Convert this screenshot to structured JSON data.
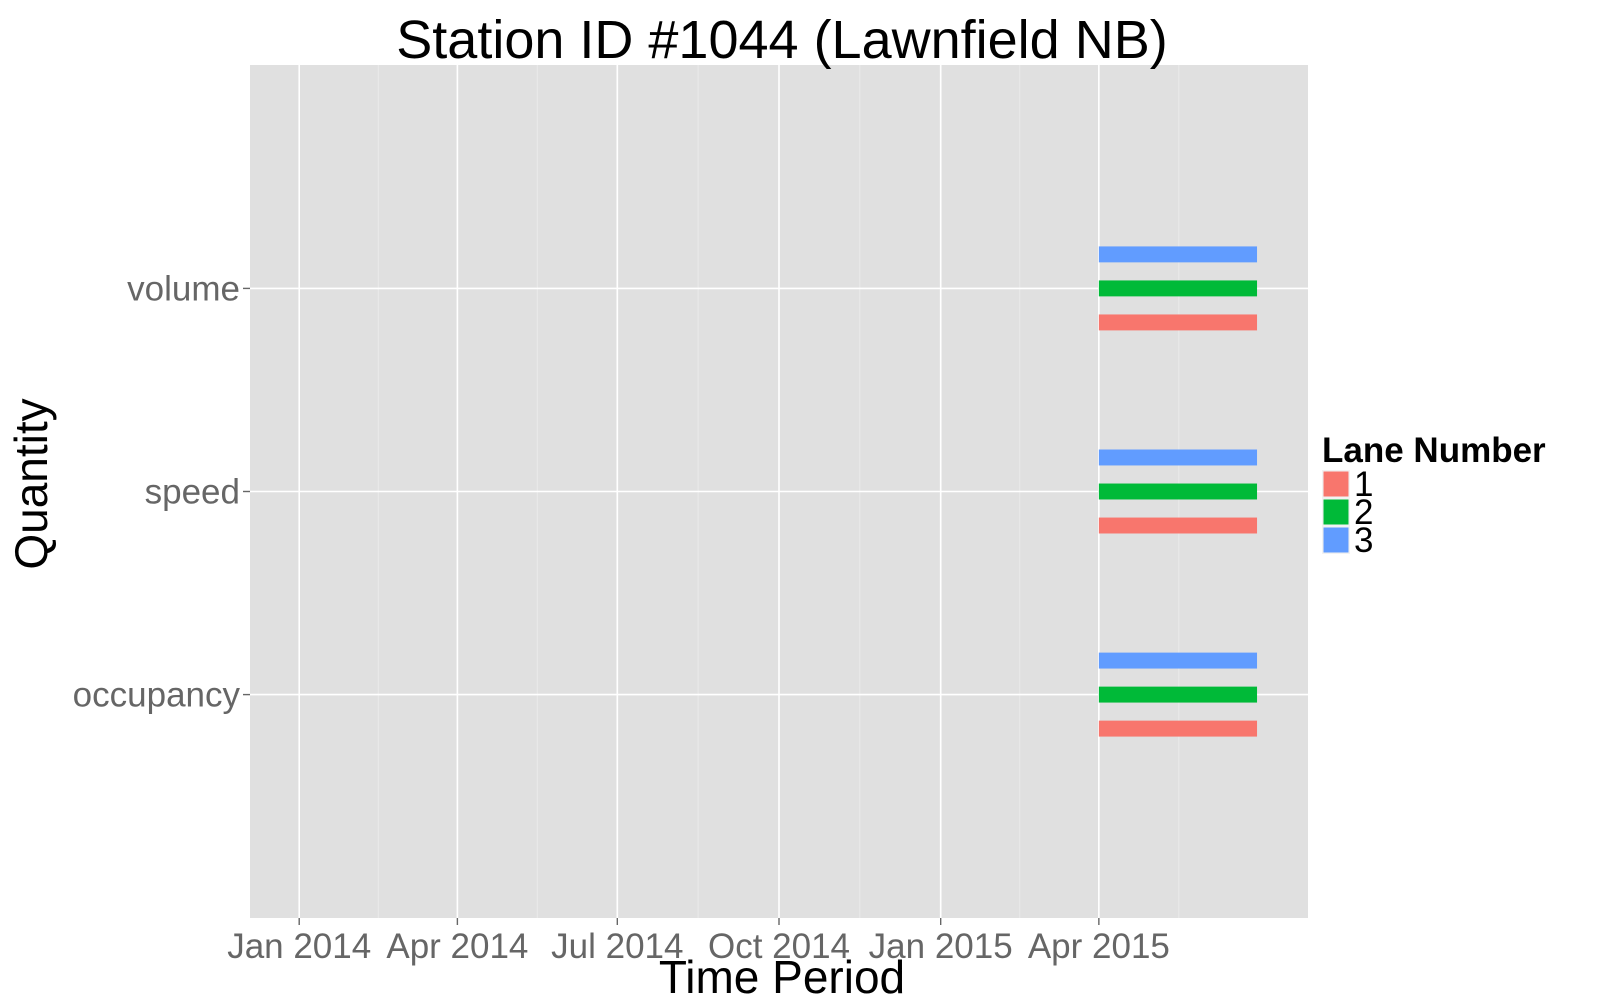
{
  "chart_data": {
    "type": "bar",
    "orientation": "horizontal",
    "title": "Station ID #1044 (Lawnfield NB)",
    "xlabel": "Time Period",
    "ylabel": "Quantity",
    "x_axis": {
      "type": "date",
      "ticks": [
        "2014-01-01",
        "2014-04-01",
        "2014-07-01",
        "2014-10-01",
        "2015-01-01",
        "2015-04-01"
      ],
      "tick_labels": [
        "Jan 2014",
        "Apr 2014",
        "Jul 2014",
        "Oct 2014",
        "Jan 2015",
        "Apr 2015"
      ],
      "range": [
        "2013-12-04",
        "2015-07-29"
      ]
    },
    "categories": [
      "occupancy",
      "speed",
      "volume"
    ],
    "legend": {
      "title": "Lane Number",
      "position": "right",
      "entries": [
        "1",
        "2",
        "3"
      ]
    },
    "series": [
      {
        "name": "1",
        "color": "#F8766D",
        "bars": [
          {
            "category": "volume",
            "start": "2015-04-01",
            "end": "2015-06-30"
          },
          {
            "category": "speed",
            "start": "2015-04-01",
            "end": "2015-06-30"
          },
          {
            "category": "occupancy",
            "start": "2015-04-01",
            "end": "2015-06-30"
          }
        ]
      },
      {
        "name": "2",
        "color": "#00BA38",
        "bars": [
          {
            "category": "volume",
            "start": "2015-04-01",
            "end": "2015-06-30"
          },
          {
            "category": "speed",
            "start": "2015-04-01",
            "end": "2015-06-30"
          },
          {
            "category": "occupancy",
            "start": "2015-04-01",
            "end": "2015-06-30"
          }
        ]
      },
      {
        "name": "3",
        "color": "#619CFF",
        "bars": [
          {
            "category": "volume",
            "start": "2015-04-01",
            "end": "2015-06-30"
          },
          {
            "category": "speed",
            "start": "2015-04-01",
            "end": "2015-06-30"
          },
          {
            "category": "occupancy",
            "start": "2015-04-01",
            "end": "2015-06-30"
          }
        ]
      }
    ],
    "grid": true,
    "panel_background": "#E0E0E0",
    "grid_color": "#FFFFFF"
  }
}
